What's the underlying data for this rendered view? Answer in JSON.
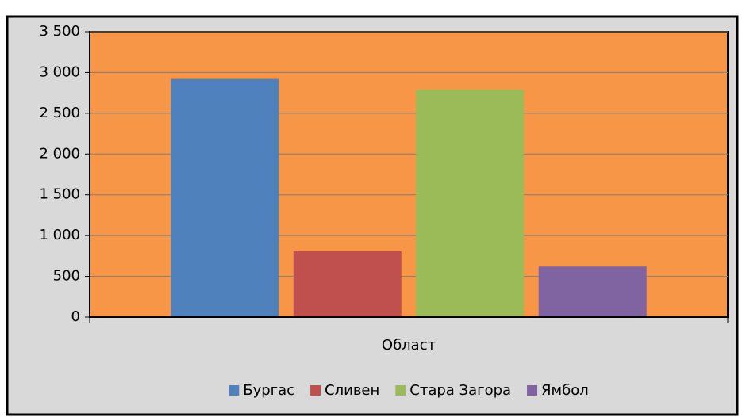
{
  "chart_data": {
    "type": "bar",
    "x_label": "Област",
    "categories": [
      "Област"
    ],
    "series": [
      {
        "name": "Бургас",
        "color": "#4f81bd",
        "values": [
          2920
        ]
      },
      {
        "name": "Сливен",
        "color": "#c0504d",
        "values": [
          810
        ]
      },
      {
        "name": "Стара Загора",
        "color": "#9bbb59",
        "values": [
          2790
        ]
      },
      {
        "name": "Ямбол",
        "color": "#8064a2",
        "values": [
          620
        ]
      }
    ],
    "ylim": [
      0,
      3500
    ],
    "yticks": [
      0,
      500,
      {
        "value": 1000,
        "label": "1 000"
      },
      {
        "value": 1500,
        "label": "1 500"
      },
      {
        "value": 2000,
        "label": "2 000"
      },
      {
        "value": 2500,
        "label": "2 500"
      },
      {
        "value": 3000,
        "label": "3 000"
      },
      {
        "value": 3500,
        "label": "3 500"
      }
    ],
    "grid": true,
    "plot_color": "#f79646",
    "legend": "bottom"
  }
}
